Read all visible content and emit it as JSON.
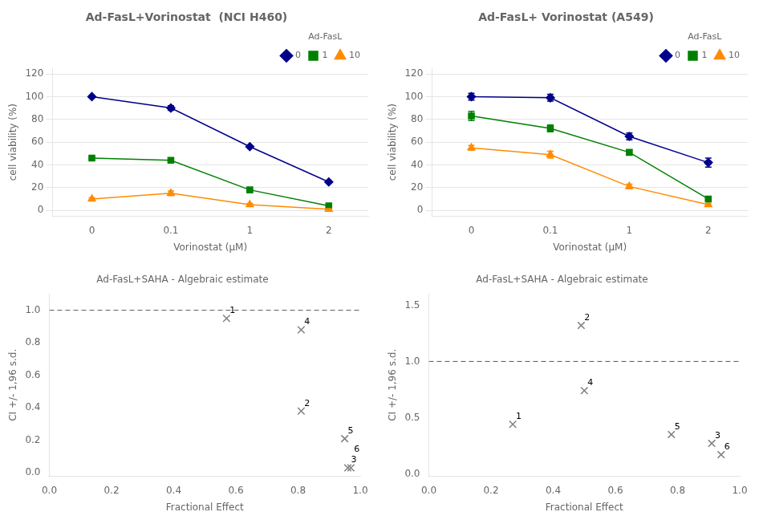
{
  "chart_data": [
    {
      "type": "line",
      "title": "Ad-FasL+Vorinostat  (NCI H460)",
      "x_label": "Vorinostat (μM)",
      "y_label": "cell viability (%)",
      "categories": [
        "0",
        "0.1",
        "1",
        "2"
      ],
      "series": [
        {
          "name": "0",
          "color": "#00008B",
          "marker": "diamond",
          "values": [
            100,
            90,
            56,
            25
          ],
          "errors": [
            0,
            2,
            0,
            0
          ]
        },
        {
          "name": "1",
          "color": "#008000",
          "marker": "square",
          "values": [
            46,
            44,
            18,
            4
          ],
          "errors": [
            1,
            2,
            1,
            0.5
          ]
        },
        {
          "name": "10",
          "color": "#FF8C00",
          "marker": "triangle",
          "values": [
            10,
            15,
            5,
            1
          ],
          "errors": [
            1,
            2,
            1,
            0.5
          ]
        }
      ],
      "ylim": [
        -5,
        125
      ],
      "yticks": [
        0,
        20,
        40,
        60,
        80,
        100,
        120
      ],
      "grid": "y",
      "legend": "upper right",
      "legend_title": "Ad-FasL"
    },
    {
      "type": "line",
      "title": "Ad-FasL+ Vorinostat (A549)",
      "x_label": "Vorinostat (μM)",
      "y_label": "cell viability (%)",
      "categories": [
        "0",
        "0.1",
        "1",
        "2"
      ],
      "series": [
        {
          "name": "0",
          "color": "#00008B",
          "marker": "diamond",
          "values": [
            100,
            99,
            65,
            42
          ],
          "errors": [
            3,
            3,
            3,
            4
          ]
        },
        {
          "name": "1",
          "color": "#008000",
          "marker": "square",
          "values": [
            83,
            72,
            51,
            10
          ],
          "errors": [
            4,
            3,
            2,
            1
          ]
        },
        {
          "name": "10",
          "color": "#FF8C00",
          "marker": "triangle",
          "values": [
            55,
            49,
            21,
            5
          ],
          "errors": [
            2,
            3,
            2,
            1
          ]
        }
      ],
      "ylim": [
        -5,
        125
      ],
      "yticks": [
        0,
        20,
        40,
        60,
        80,
        100,
        120
      ],
      "grid": "y",
      "legend": "upper right",
      "legend_title": "Ad-FasL"
    },
    {
      "type": "scatter",
      "title": "Ad-FasL+SAHA - Algebraic estimate",
      "x_label": "Fractional Effect",
      "y_label": "CI +/- 1,96 s.d.",
      "x": [
        0.57,
        0.81,
        0.81,
        0.95,
        0.96,
        0.97
      ],
      "values": [
        0.95,
        0.38,
        0.88,
        0.21,
        0.03,
        0.03
      ],
      "point_labels": [
        "1",
        "2",
        "4",
        "5",
        "3",
        "6"
      ],
      "color": "#808080",
      "marker": "x",
      "xlim": [
        0,
        1.0
      ],
      "ylim": [
        -0.02,
        1.1
      ],
      "xticks": [
        {
          "value": 0,
          "label": "0.0"
        },
        {
          "value": 0.2,
          "label": "0.2"
        },
        {
          "value": 0.4,
          "label": "0.4"
        },
        {
          "value": 0.6,
          "label": "0.6"
        },
        {
          "value": 0.8,
          "label": "0.8"
        },
        {
          "value": 1.0,
          "label": "1.0"
        }
      ],
      "yticks": [
        {
          "value": 0,
          "label": "0.0"
        },
        {
          "value": 0.2,
          "label": "0.2"
        },
        {
          "value": 0.4,
          "label": "0.4"
        },
        {
          "value": 0.6,
          "label": "0.6"
        },
        {
          "value": 0.8,
          "label": "0.8"
        },
        {
          "value": 1.0,
          "label": "1.0"
        }
      ],
      "grid": false,
      "hlines": [
        {
          "y": 1.0,
          "color": "#555555",
          "line_style": "dashed"
        }
      ]
    },
    {
      "type": "scatter",
      "title": "Ad-FasL+SAHA - Algebraic estimate",
      "x_label": "Fractional Effect",
      "y_label": "CI +/- 1,96 s.d.",
      "x": [
        0.27,
        0.49,
        0.5,
        0.78,
        0.91,
        0.94
      ],
      "values": [
        0.44,
        1.32,
        0.74,
        0.35,
        0.27,
        0.17
      ],
      "point_labels": [
        "1",
        "2",
        "4",
        "5",
        "3",
        "6"
      ],
      "color": "#808080",
      "marker": "x",
      "xlim": [
        0,
        1.0
      ],
      "ylim": [
        -0.02,
        1.6
      ],
      "xticks": [
        {
          "value": 0,
          "label": "0.0"
        },
        {
          "value": 0.2,
          "label": "0.2"
        },
        {
          "value": 0.4,
          "label": "0.4"
        },
        {
          "value": 0.6,
          "label": "0.6"
        },
        {
          "value": 0.8,
          "label": "0.8"
        },
        {
          "value": 1.0,
          "label": "1.0"
        }
      ],
      "yticks": [
        {
          "value": 0,
          "label": "0.0"
        },
        {
          "value": 0.5,
          "label": "0.5"
        },
        {
          "value": 1.0,
          "label": "1.0"
        },
        {
          "value": 1.5,
          "label": "1.5"
        }
      ],
      "grid": false,
      "hlines": [
        {
          "y": 1.0,
          "color": "#555555",
          "line_style": "dashed"
        }
      ]
    }
  ]
}
